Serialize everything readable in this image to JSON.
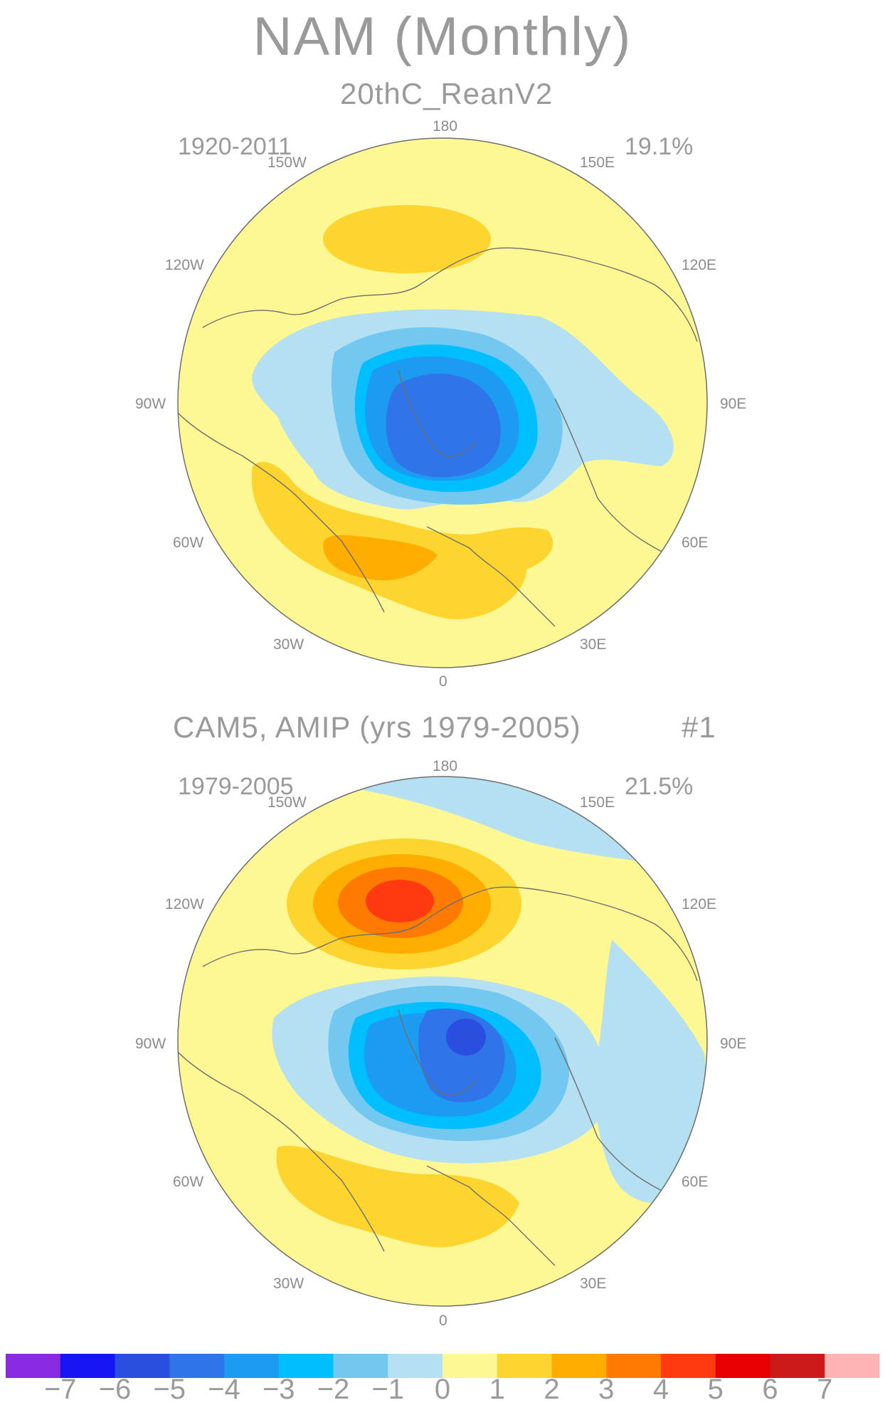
{
  "title": "NAM (Monthly)",
  "colors": {
    "land_outline": "#6e6e6e",
    "map_border": "#6e6e6e",
    "colorbar": [
      "#8a2be2",
      "#1515f5",
      "#2a4fe0",
      "#2f74e8",
      "#1c9bf0",
      "#00bfff",
      "#72c8f0",
      "#b4e0f2",
      "#fdf893",
      "#fdd52e",
      "#ffad00",
      "#ff7a00",
      "#ff3a10",
      "#e60000",
      "#cc1a1a",
      "#ffb4b4"
    ]
  },
  "panels": [
    {
      "title": "20thC_ReanV2",
      "period": "1920-2011",
      "variance": "19.1%",
      "lon_labels": {
        "deg180": "180",
        "w150": "150W",
        "e150": "150E",
        "w120": "120W",
        "e120": "120E",
        "w90": "90W",
        "e90": "90E",
        "w60": "60W",
        "e60": "60E",
        "w30": "30W",
        "e30": "30E",
        "deg0": "0"
      }
    },
    {
      "title": "CAM5, AMIP (yrs 1979-2005)",
      "run": "#1",
      "period": "1979-2005",
      "variance": "21.5%",
      "lon_labels": {
        "deg180": "180",
        "w150": "150W",
        "e150": "150E",
        "w120": "120W",
        "e120": "120E",
        "w90": "90W",
        "e90": "90E",
        "w60": "60W",
        "e60": "60E",
        "w30": "30W",
        "e30": "30E",
        "deg0": "0"
      }
    }
  ],
  "colorbar": {
    "labels": [
      "-7",
      "-6",
      "-5",
      "-4",
      "-3",
      "-2",
      "-1",
      "0",
      "1",
      "2",
      "3",
      "4",
      "5",
      "6",
      "7"
    ]
  }
}
